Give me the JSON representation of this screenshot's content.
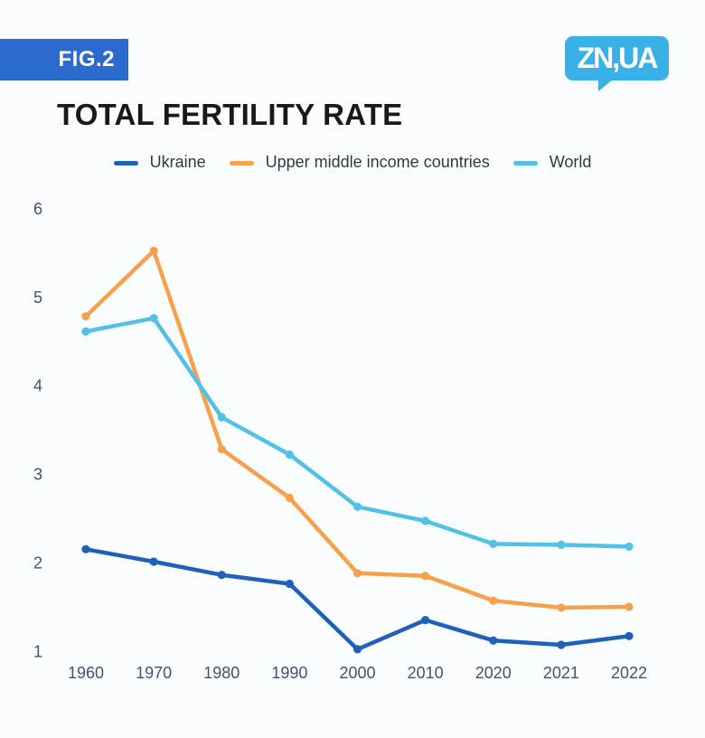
{
  "page": {
    "background_color": "#fafdfe"
  },
  "header": {
    "fig_label": "FIG.2",
    "fig_badge_color": "#2b6bce",
    "logo_text": "ZN,UA",
    "logo_color": "#39b1e8"
  },
  "title": {
    "text": "TOTAL FERTILITY RATE",
    "color": "#17191c"
  },
  "axis": {
    "label_color": "#44536a"
  },
  "legend": {
    "text_color": "#32383e",
    "position": "top"
  },
  "chart_data": {
    "type": "line",
    "title": "TOTAL FERTILITY RATE",
    "categories": [
      "1960",
      "1970",
      "1980",
      "1990",
      "2000",
      "2010",
      "2020",
      "2021",
      "2022"
    ],
    "series": [
      {
        "name": "Ukraine",
        "color": "#1f60ba",
        "values": [
          2.15,
          2.01,
          1.86,
          1.76,
          1.02,
          1.35,
          1.12,
          1.07,
          1.17
        ]
      },
      {
        "name": "Upper middle income countries",
        "color": "#f8a04c",
        "values": [
          4.78,
          5.52,
          3.28,
          2.73,
          1.88,
          1.85,
          1.57,
          1.49,
          1.5
        ]
      },
      {
        "name": "World",
        "color": "#53c1e6",
        "values": [
          4.61,
          4.76,
          3.64,
          3.22,
          2.63,
          2.47,
          2.21,
          2.2,
          2.18
        ]
      }
    ],
    "xlabel": "",
    "ylabel": "",
    "ylim": [
      1,
      6
    ],
    "yticks": [
      1,
      2,
      3,
      4,
      5,
      6
    ],
    "grid": false,
    "legend_position": "top",
    "markers": true
  }
}
